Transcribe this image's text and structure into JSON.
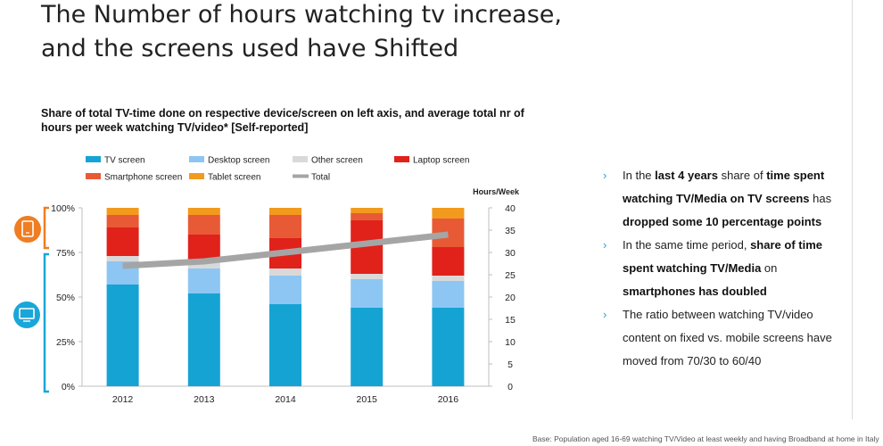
{
  "title": "The Number of hours watching tv increase, and the screens used have Shifted",
  "subtitle": "Share of total TV-time done on respective device/screen on left axis, and average total nr of hours per week watching TV/video* [Self-reported]",
  "colors": {
    "tv": "#15a3d4",
    "desktop": "#8dc6f2",
    "other": "#d9d9d9",
    "laptop": "#e0221b",
    "smartphone": "#e85a35",
    "tablet": "#f29a1e",
    "total": "#a5a5a5",
    "accent_orange": "#ef7d22",
    "accent_blue": "#1aa6d8"
  },
  "icons": {
    "tablet_group": "tablet-icon",
    "tv_group": "tv-screen-icon"
  },
  "chart_data": {
    "type": "bar",
    "stacked": true,
    "categories": [
      "2012",
      "2013",
      "2014",
      "2015",
      "2016"
    ],
    "series": [
      {
        "name": "TV screen",
        "values": [
          57,
          52,
          46,
          44,
          44
        ]
      },
      {
        "name": "Desktop screen",
        "values": [
          13,
          14,
          16,
          16,
          15
        ]
      },
      {
        "name": "Other screen",
        "values": [
          3,
          4,
          4,
          3,
          3
        ]
      },
      {
        "name": "Laptop screen",
        "values": [
          16,
          15,
          17,
          30,
          16
        ]
      },
      {
        "name": "Smartphone screen",
        "values": [
          7,
          11,
          13,
          4,
          16
        ]
      },
      {
        "name": "Tablet screen",
        "values": [
          4,
          4,
          4,
          3,
          6
        ]
      }
    ],
    "line": {
      "name": "Total",
      "values": [
        27,
        28,
        30,
        32,
        34
      ]
    },
    "ylim": [
      0,
      100
    ],
    "y_ticks": [
      "0%",
      "25%",
      "50%",
      "75%",
      "100%"
    ],
    "y2label": "Hours/Week",
    "y2lim": [
      0,
      40
    ],
    "y2_ticks": [
      "0",
      "5",
      "10",
      "15",
      "20",
      "25",
      "30",
      "35",
      "40"
    ],
    "legend": "top",
    "grid": false
  },
  "bullets": [
    {
      "segments": [
        {
          "text": "In the ",
          "bold": false
        },
        {
          "text": "last 4 years",
          "bold": true
        },
        {
          "text": " share of ",
          "bold": false
        },
        {
          "text": "time spent watching TV/Media on TV screens",
          "bold": true
        },
        {
          "text": " has ",
          "bold": false
        },
        {
          "text": "dropped some 10 percentage points",
          "bold": true
        }
      ]
    },
    {
      "segments": [
        {
          "text": "In the same time period, ",
          "bold": false
        },
        {
          "text": "share of time spent watching TV/Media",
          "bold": true
        },
        {
          "text": " on ",
          "bold": false
        },
        {
          "text": "smartphones has doubled",
          "bold": true
        }
      ]
    },
    {
      "segments": [
        {
          "text": "The ratio between watching TV/video content on fixed vs. mobile screens have moved from 70/30 to 60/40",
          "bold": false
        }
      ]
    }
  ],
  "bullet_marker": "›",
  "footnote": "Base: Population aged 16-69 watching TV/Video at least weekly and having Broadband at home in Italy"
}
